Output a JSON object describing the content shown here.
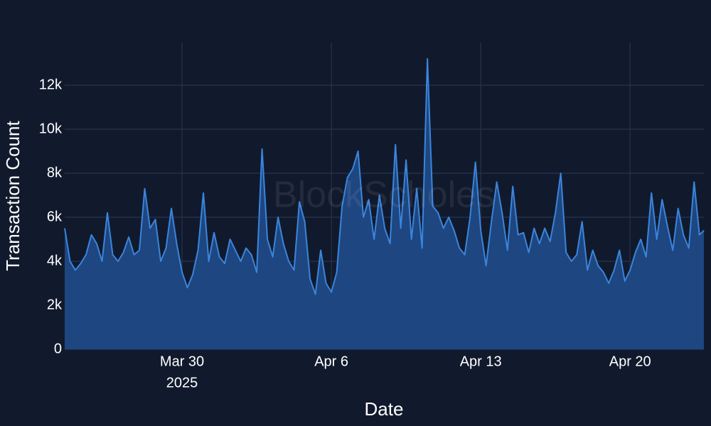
{
  "chart_data": {
    "type": "area",
    "watermark": "BlockScholes",
    "x_label": "Date",
    "y_label": "Transaction Count",
    "color": "#3a85dc",
    "fill_color": "#1e4680",
    "grid": true,
    "xlim": [
      "2025-03-24T12:00",
      "2025-04-23T11:00"
    ],
    "xticks": [
      {
        "value": "2025-03-30T00:00",
        "label": [
          "Mar 30",
          "2025"
        ]
      },
      {
        "value": "2025-04-06T00:00",
        "label": [
          "Apr 6"
        ]
      },
      {
        "value": "2025-04-13T00:00",
        "label": [
          "Apr 13"
        ]
      },
      {
        "value": "2025-04-20T00:00",
        "label": [
          "Apr 20"
        ]
      }
    ],
    "ylim": [
      0,
      13935
    ],
    "yticks": [
      0,
      {
        "value": 2000,
        "label": "2k"
      },
      {
        "value": 4000,
        "label": "4k"
      },
      {
        "value": 6000,
        "label": "6k"
      },
      {
        "value": 8000,
        "label": "8k"
      },
      {
        "value": 10000,
        "label": "10k"
      },
      {
        "value": 12000,
        "label": "12k"
      }
    ],
    "x": [
      "2025-03-24T12:00",
      "2025-03-24T18:00",
      "2025-03-25T00:00",
      "2025-03-25T06:00",
      "2025-03-25T12:00",
      "2025-03-25T18:00",
      "2025-03-26T00:00",
      "2025-03-26T06:00",
      "2025-03-26T12:00",
      "2025-03-26T18:00",
      "2025-03-27T00:00",
      "2025-03-27T06:00",
      "2025-03-27T12:00",
      "2025-03-27T18:00",
      "2025-03-28T00:00",
      "2025-03-28T06:00",
      "2025-03-28T12:00",
      "2025-03-28T18:00",
      "2025-03-29T00:00",
      "2025-03-29T06:00",
      "2025-03-29T12:00",
      "2025-03-29T18:00",
      "2025-03-30T00:00",
      "2025-03-30T06:00",
      "2025-03-30T12:00",
      "2025-03-30T18:00",
      "2025-03-31T00:00",
      "2025-03-31T06:00",
      "2025-03-31T12:00",
      "2025-03-31T18:00",
      "2025-04-01T00:00",
      "2025-04-01T06:00",
      "2025-04-01T12:00",
      "2025-04-01T18:00",
      "2025-04-02T00:00",
      "2025-04-02T06:00",
      "2025-04-02T12:00",
      "2025-04-02T18:00",
      "2025-04-03T00:00",
      "2025-04-03T06:00",
      "2025-04-03T12:00",
      "2025-04-03T18:00",
      "2025-04-04T00:00",
      "2025-04-04T06:00",
      "2025-04-04T12:00",
      "2025-04-04T18:00",
      "2025-04-05T00:00",
      "2025-04-05T06:00",
      "2025-04-05T12:00",
      "2025-04-05T18:00",
      "2025-04-06T00:00",
      "2025-04-06T06:00",
      "2025-04-06T12:00",
      "2025-04-06T18:00",
      "2025-04-07T00:00",
      "2025-04-07T06:00",
      "2025-04-07T12:00",
      "2025-04-07T18:00",
      "2025-04-08T00:00",
      "2025-04-08T06:00",
      "2025-04-08T12:00",
      "2025-04-08T18:00",
      "2025-04-09T00:00",
      "2025-04-09T06:00",
      "2025-04-09T12:00",
      "2025-04-09T18:00",
      "2025-04-10T00:00",
      "2025-04-10T06:00",
      "2025-04-10T12:00",
      "2025-04-10T18:00",
      "2025-04-11T00:00",
      "2025-04-11T06:00",
      "2025-04-11T12:00",
      "2025-04-11T18:00",
      "2025-04-12T00:00",
      "2025-04-12T06:00",
      "2025-04-12T12:00",
      "2025-04-12T18:00",
      "2025-04-13T00:00",
      "2025-04-13T06:00",
      "2025-04-13T12:00",
      "2025-04-13T18:00",
      "2025-04-14T00:00",
      "2025-04-14T06:00",
      "2025-04-14T12:00",
      "2025-04-14T18:00",
      "2025-04-15T00:00",
      "2025-04-15T06:00",
      "2025-04-15T12:00",
      "2025-04-15T18:00",
      "2025-04-16T00:00",
      "2025-04-16T06:00",
      "2025-04-16T12:00",
      "2025-04-16T18:00",
      "2025-04-17T00:00",
      "2025-04-17T06:00",
      "2025-04-17T12:00",
      "2025-04-17T18:00",
      "2025-04-18T00:00",
      "2025-04-18T06:00",
      "2025-04-18T12:00",
      "2025-04-18T18:00",
      "2025-04-19T00:00",
      "2025-04-19T06:00",
      "2025-04-19T12:00",
      "2025-04-19T18:00",
      "2025-04-20T00:00",
      "2025-04-20T06:00",
      "2025-04-20T12:00",
      "2025-04-20T18:00",
      "2025-04-21T00:00",
      "2025-04-21T06:00",
      "2025-04-21T12:00",
      "2025-04-21T18:00",
      "2025-04-22T00:00",
      "2025-04-22T06:00",
      "2025-04-22T12:00",
      "2025-04-22T18:00",
      "2025-04-23T00:00",
      "2025-04-23T06:00",
      "2025-04-23T11:00"
    ],
    "values": [
      5500,
      4000,
      3600,
      3900,
      4300,
      5200,
      4800,
      4000,
      6200,
      4300,
      4000,
      4400,
      5100,
      4300,
      4500,
      7300,
      5500,
      5900,
      4000,
      4600,
      6400,
      4800,
      3500,
      2800,
      3400,
      4500,
      7100,
      4000,
      5300,
      4200,
      3900,
      5000,
      4500,
      4000,
      4600,
      4300,
      3500,
      9100,
      5000,
      4200,
      6000,
      4800,
      4000,
      3600,
      6700,
      5800,
      3200,
      2500,
      4500,
      3000,
      2600,
      3500,
      6500,
      7800,
      8200,
      9000,
      6000,
      6800,
      5000,
      7000,
      5500,
      4800,
      9300,
      5500,
      8600,
      5000,
      7300,
      4600,
      13200,
      6500,
      6200,
      5500,
      6000,
      5400,
      4600,
      4300,
      6000,
      8500,
      5400,
      3800,
      5800,
      7600,
      6200,
      4500,
      7400,
      5200,
      5300,
      4400,
      5500,
      4800,
      5500,
      4900,
      6200,
      8000,
      4400,
      4000,
      4300,
      5800,
      3600,
      4500,
      3800,
      3500,
      3000,
      3600,
      4500,
      3100,
      3600,
      4400,
      5000,
      4200,
      7100,
      5000,
      6800,
      5600,
      4500,
      6400,
      5200,
      4600,
      7600,
      5200,
      5400
    ]
  }
}
